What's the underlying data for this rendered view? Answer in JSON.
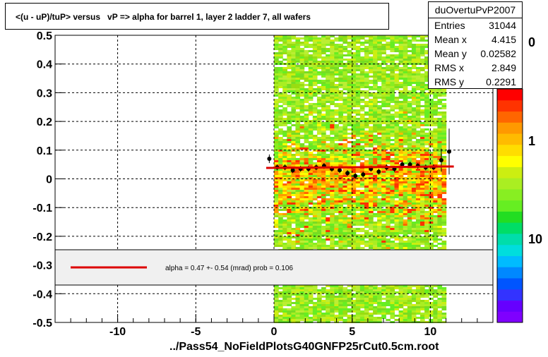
{
  "title": "<(u - uP)/tuP> versus   vP => alpha for barrel 1, layer 2 ladder 7, all wafers",
  "stats": {
    "name": "duOvertuPvP2007",
    "rows": [
      {
        "label": "Entries",
        "value": "31044"
      },
      {
        "label": "Mean x",
        "value": "4.415"
      },
      {
        "label": "Mean y",
        "value": "0.02582"
      },
      {
        "label": "RMS x",
        "value": "2.849"
      },
      {
        "label": "RMS y",
        "value": "0.2291"
      }
    ]
  },
  "fit_legend": {
    "text": "alpha =    0.47 +-  0.54 (mrad) prob = 0.106",
    "line_color": "#dd0000"
  },
  "footer": "../Pass54_NoFieldPlotsG40GNFP25rCut0.5cm.root",
  "palette": {
    "labels": [
      "0",
      "1",
      "10"
    ],
    "colors": [
      "#7f00ff",
      "#6600ff",
      "#3333ff",
      "#0055ff",
      "#0088ff",
      "#00bbff",
      "#00dddd",
      "#00ddaa",
      "#00dd66",
      "#22dd22",
      "#66ee22",
      "#88ee22",
      "#aaee22",
      "#ccee11",
      "#ffff00",
      "#ffdd00",
      "#ffbb00",
      "#ff9900",
      "#ff6600",
      "#ff3300",
      "#ff0000"
    ]
  },
  "chart_data": {
    "type": "heatmap",
    "title": "<(u - uP)/tuP> versus   vP => alpha for barrel 1, layer 2 ladder 7, all wafers",
    "xlim": [
      -14,
      14
    ],
    "ylim": [
      -0.5,
      0.5
    ],
    "x_ticks": [
      "-10",
      "-5",
      "0",
      "5",
      "10"
    ],
    "y_ticks": [
      "-0.5",
      "-0.4",
      "-0.3",
      "-0.2",
      "-0.1",
      "0",
      "0.1",
      "0.2",
      "0.3",
      "0.4",
      "0.5"
    ],
    "grid": true,
    "occupied_x_range": [
      0,
      11
    ],
    "profile_points": [
      {
        "x": -0.3,
        "y": 0.07,
        "err": 0.015
      },
      {
        "x": 0.2,
        "y": 0.04,
        "err": 0.01
      },
      {
        "x": 0.7,
        "y": 0.04,
        "err": 0.01
      },
      {
        "x": 1.2,
        "y": 0.03,
        "err": 0.01
      },
      {
        "x": 1.7,
        "y": 0.035,
        "err": 0.01
      },
      {
        "x": 2.2,
        "y": 0.035,
        "err": 0.01
      },
      {
        "x": 2.7,
        "y": 0.04,
        "err": 0.01
      },
      {
        "x": 3.2,
        "y": 0.045,
        "err": 0.01
      },
      {
        "x": 3.7,
        "y": 0.035,
        "err": 0.01
      },
      {
        "x": 4.2,
        "y": 0.03,
        "err": 0.01
      },
      {
        "x": 4.7,
        "y": 0.02,
        "err": 0.01
      },
      {
        "x": 5.2,
        "y": 0.01,
        "err": 0.01
      },
      {
        "x": 5.7,
        "y": 0.015,
        "err": 0.01
      },
      {
        "x": 6.2,
        "y": 0.035,
        "err": 0.01
      },
      {
        "x": 6.7,
        "y": 0.025,
        "err": 0.01
      },
      {
        "x": 7.2,
        "y": 0.04,
        "err": 0.01
      },
      {
        "x": 7.7,
        "y": 0.035,
        "err": 0.01
      },
      {
        "x": 8.2,
        "y": 0.05,
        "err": 0.01
      },
      {
        "x": 8.7,
        "y": 0.05,
        "err": 0.01
      },
      {
        "x": 9.2,
        "y": 0.045,
        "err": 0.01
      },
      {
        "x": 9.7,
        "y": 0.04,
        "err": 0.01
      },
      {
        "x": 10.2,
        "y": 0.04,
        "err": 0.01
      },
      {
        "x": 10.7,
        "y": 0.065,
        "err": 0.04
      },
      {
        "x": 11.2,
        "y": 0.095,
        "err": 0.08
      }
    ],
    "fit_line": {
      "x": [
        -0.5,
        11.5
      ],
      "y": [
        0.038,
        0.043
      ]
    }
  }
}
